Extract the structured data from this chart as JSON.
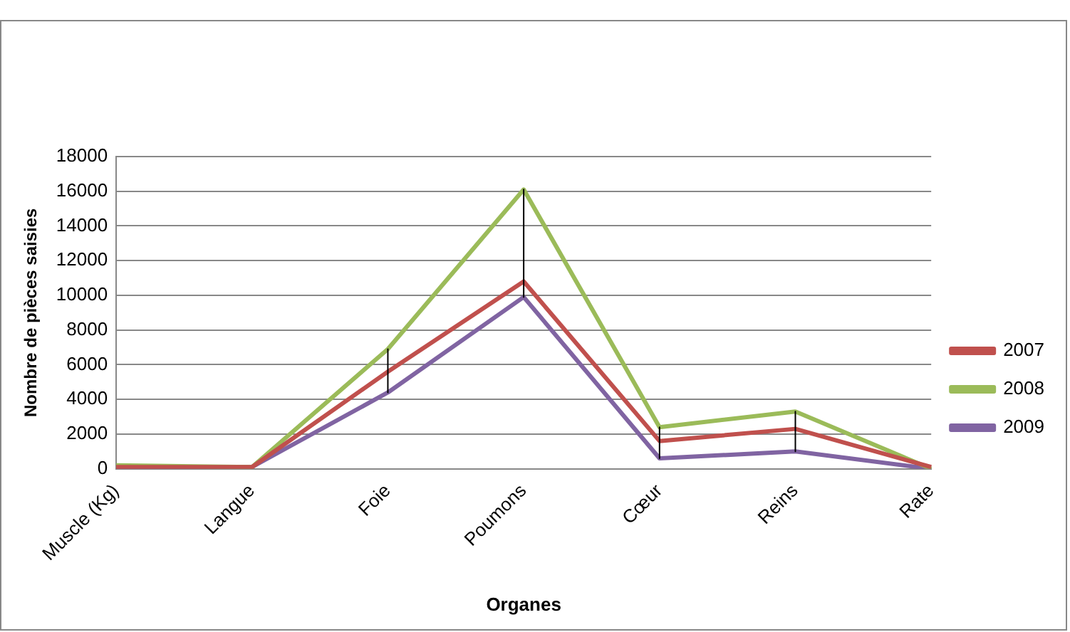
{
  "chart_data": {
    "type": "line",
    "xlabel": "Organes",
    "ylabel": "Nombre de pièces saisies",
    "categories": [
      "Muscle (Kg)",
      "Langue",
      "Foie",
      "Poumons",
      "Cœur",
      "Reins",
      "Rate"
    ],
    "series": [
      {
        "name": "2007",
        "color": "#c0504d",
        "values": [
          100,
          100,
          5600,
          10800,
          1600,
          2300,
          100
        ]
      },
      {
        "name": "2008",
        "color": "#9bbb59",
        "values": [
          200,
          100,
          6900,
          16100,
          2400,
          3300,
          0
        ]
      },
      {
        "name": "2009",
        "color": "#8064a2",
        "values": [
          0,
          100,
          4400,
          9900,
          600,
          1000,
          0
        ]
      },
      {
        "type": "line",
        "color": "#000000",
        "x": [
          "Foie",
          "Foie"
        ],
        "values": [
          6900,
          4400
        ]
      },
      {
        "type": "line",
        "color": "#000000",
        "x": [
          "Poumons",
          "Poumons"
        ],
        "values": [
          16100,
          9900
        ]
      },
      {
        "type": "line",
        "color": "#000000",
        "x": [
          "Cœur",
          "Cœur"
        ],
        "values": [
          2400,
          600
        ]
      },
      {
        "type": "line",
        "color": "#000000",
        "x": [
          "Reins",
          "Reins"
        ],
        "values": [
          3300,
          1000
        ]
      }
    ],
    "ylim": [
      0,
      18000
    ],
    "yticks": [
      0,
      2000,
      4000,
      6000,
      8000,
      10000,
      12000,
      14000,
      16000,
      18000
    ],
    "grid": "y",
    "legend": "right",
    "marker": "none"
  }
}
